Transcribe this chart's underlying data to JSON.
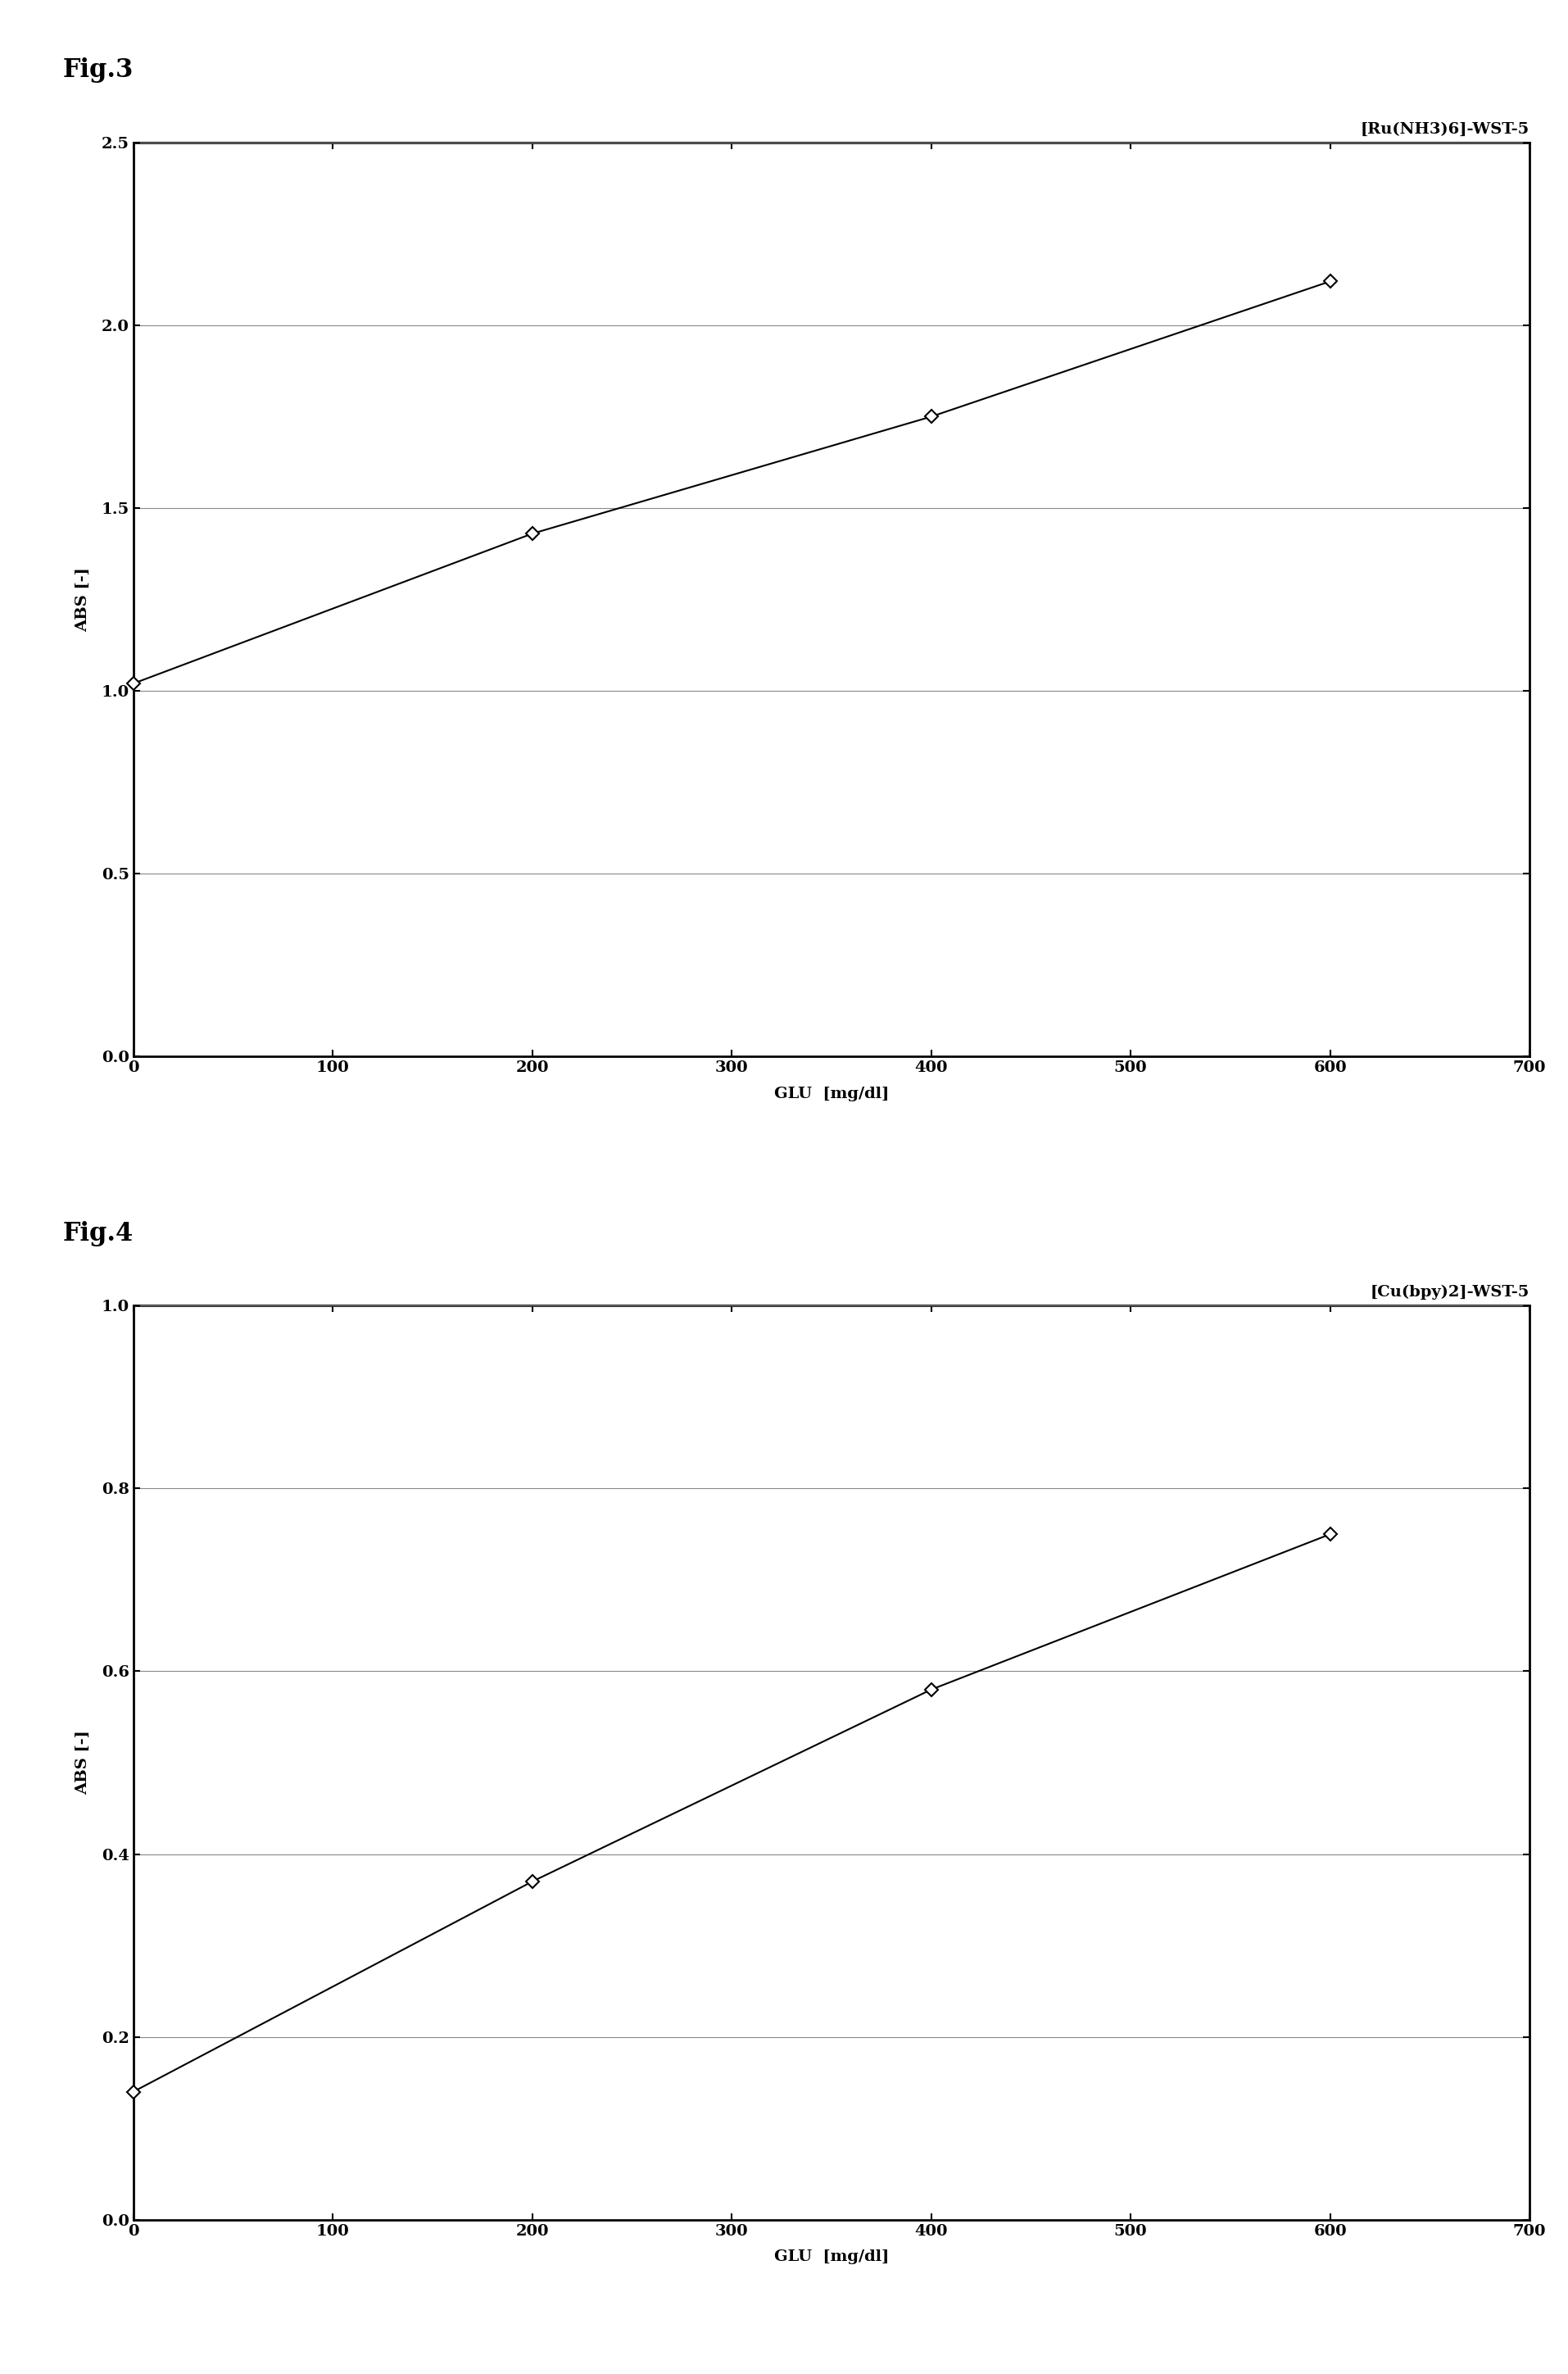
{
  "fig3": {
    "title": "[Ru(NH3)6]-WST-5",
    "x": [
      0,
      200,
      400,
      600
    ],
    "y": [
      1.02,
      1.43,
      1.75,
      2.12
    ],
    "xlabel": "GLU  [mg/dl]",
    "ylabel": "ABS [-]",
    "xlim": [
      0,
      700
    ],
    "ylim": [
      0.0,
      2.5
    ],
    "xticks": [
      0,
      100,
      200,
      300,
      400,
      500,
      600,
      700
    ],
    "yticks": [
      0.0,
      0.5,
      1.0,
      1.5,
      2.0,
      2.5
    ],
    "fig_label": "Fig.3"
  },
  "fig4": {
    "title": "[Cu(bpy)2]-WST-5",
    "x": [
      0,
      200,
      400,
      600
    ],
    "y": [
      0.14,
      0.37,
      0.58,
      0.75
    ],
    "xlabel": "GLU  [mg/dl]",
    "ylabel": "ABS [-]",
    "xlim": [
      0,
      700
    ],
    "ylim": [
      0.0,
      1.0
    ],
    "xticks": [
      0,
      100,
      200,
      300,
      400,
      500,
      600,
      700
    ],
    "yticks": [
      0.0,
      0.2,
      0.4,
      0.6,
      0.8,
      1.0
    ],
    "fig_label": "Fig.4"
  },
  "background_color": "#ffffff",
  "line_color": "#000000",
  "marker_color": "#ffffff",
  "marker_edge_color": "#000000",
  "title_fontsize": 14,
  "label_fontsize": 14,
  "tick_fontsize": 14,
  "fig_label_fontsize": 22,
  "line_width": 1.5,
  "marker_size": 8,
  "marker_style": "D"
}
